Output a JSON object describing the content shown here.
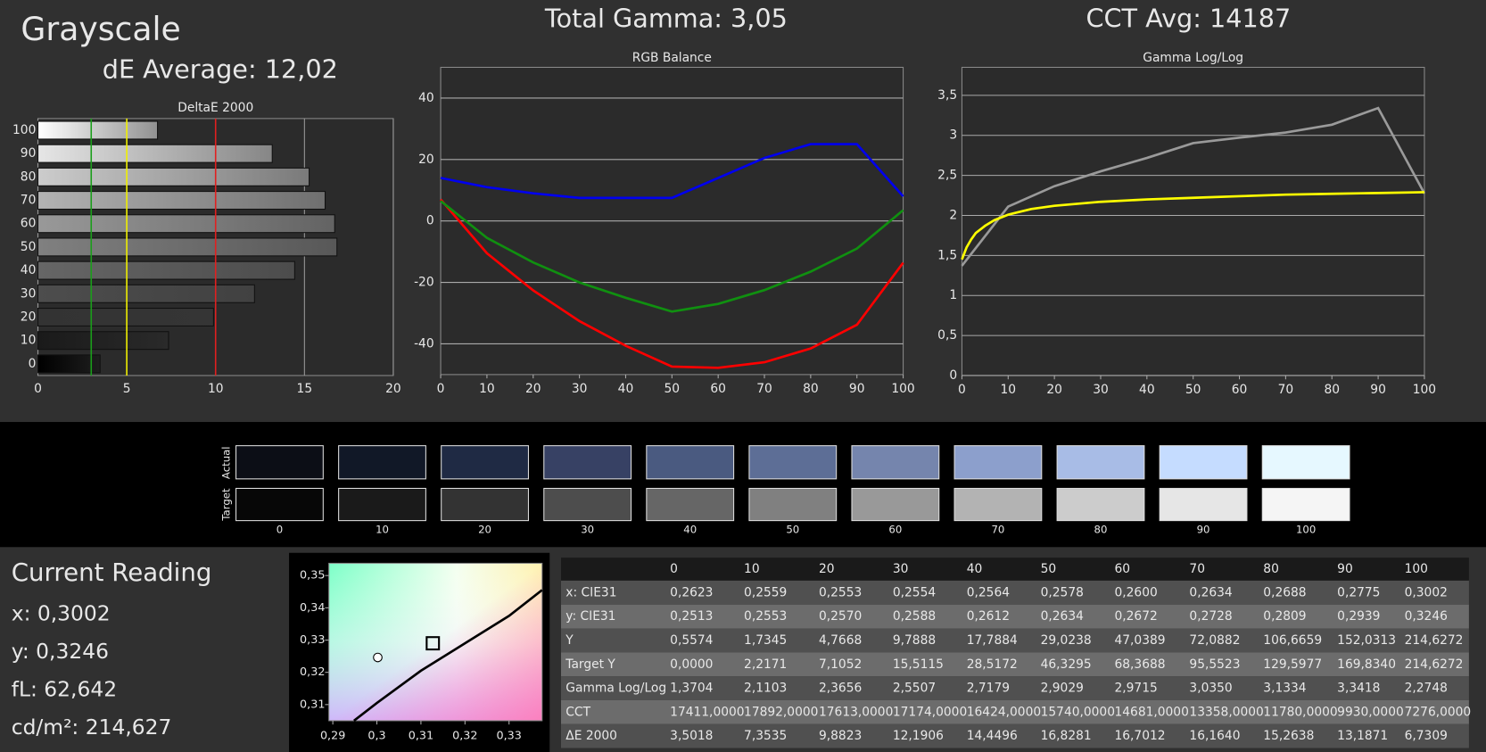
{
  "header": {
    "title": "Grayscale",
    "de_average": "dE Average: 12,02",
    "total_gamma": "Total Gamma: 3,05",
    "cct_avg": "CCT Avg: 14187"
  },
  "deltae_chart": {
    "type": "hbar",
    "title": "DeltaE 2000",
    "categories": [
      "100",
      "90",
      "80",
      "70",
      "60",
      "50",
      "40",
      "30",
      "20",
      "10",
      "0"
    ],
    "values": [
      6.7309,
      13.1871,
      15.2638,
      16.164,
      16.7012,
      16.8281,
      14.4496,
      12.1906,
      9.8823,
      7.3535,
      3.5018
    ],
    "xlim": [
      0,
      20
    ],
    "xticks": [
      0,
      5,
      10,
      15,
      20
    ],
    "reference_lines": [
      {
        "value": 3,
        "color": "#1a9e1a"
      },
      {
        "value": 5,
        "color": "#f0f000"
      },
      {
        "value": 10,
        "color": "#e02020"
      }
    ]
  },
  "rgb_chart": {
    "type": "line",
    "title": "RGB Balance",
    "x": [
      0,
      10,
      20,
      30,
      40,
      50,
      60,
      70,
      80,
      90,
      100
    ],
    "xlim": [
      0,
      100
    ],
    "xticks": [
      0,
      10,
      20,
      30,
      40,
      50,
      60,
      70,
      80,
      90,
      100
    ],
    "ylim": [
      -50,
      50
    ],
    "yticks": [
      -40,
      -20,
      0,
      20,
      40
    ],
    "grid": true,
    "series": [
      {
        "name": "Red",
        "color": "#ff0000",
        "values": [
          7,
          -10.5,
          -22.6,
          -32.6,
          -40.6,
          -47.4,
          -47.8,
          -46,
          -41.5,
          -33.8,
          -13.6
        ]
      },
      {
        "name": "Green",
        "color": "#109010",
        "values": [
          6.5,
          -5.5,
          -13.5,
          -20,
          -25,
          -29.5,
          -27,
          -22.5,
          -16.5,
          -9,
          3.5
        ]
      },
      {
        "name": "Blue",
        "color": "#0000ee",
        "values": [
          14,
          11,
          9,
          7.5,
          7.5,
          7.5,
          14,
          20.5,
          25,
          25,
          8
        ]
      }
    ]
  },
  "gamma_chart": {
    "type": "line",
    "title": "Gamma Log/Log",
    "xlim": [
      0,
      100
    ],
    "xticks": [
      0,
      10,
      20,
      30,
      40,
      50,
      60,
      70,
      80,
      90,
      100
    ],
    "ylim": [
      0,
      3.85
    ],
    "yticks": [
      0,
      {
        "value": 0.5,
        "label": "0,5"
      },
      1,
      {
        "value": 1.5,
        "label": "1,5"
      },
      2,
      {
        "value": 2.5,
        "label": "2,5"
      },
      3,
      {
        "value": 3.5,
        "label": "3,5"
      }
    ],
    "grid": true,
    "series": [
      {
        "name": "Measured",
        "color": "#9a9a9a",
        "x": [
          0,
          10,
          20,
          30,
          40,
          50,
          60,
          70,
          80,
          90,
          100
        ],
        "values": [
          1.3704,
          2.1103,
          2.3656,
          2.5507,
          2.7179,
          2.9029,
          2.9715,
          3.035,
          3.1334,
          3.3418,
          2.2748
        ]
      },
      {
        "name": "Target",
        "color": "#ffff00",
        "x": [
          0,
          1,
          2,
          3,
          5,
          7,
          10,
          15,
          20,
          30,
          40,
          50,
          60,
          70,
          80,
          90,
          100
        ],
        "values": [
          1.45,
          1.6,
          1.7,
          1.78,
          1.87,
          1.94,
          2.01,
          2.08,
          2.12,
          2.17,
          2.2,
          2.22,
          2.24,
          2.26,
          2.27,
          2.28,
          2.29
        ]
      }
    ]
  },
  "swatches": {
    "row_labels": [
      "Actual",
      "Target"
    ],
    "labels": [
      0,
      10,
      20,
      30,
      40,
      50,
      60,
      70,
      80,
      90,
      100
    ],
    "actual_colors": [
      "#0c0e16",
      "#111827",
      "#1f2a44",
      "#374164",
      "#4a5a80",
      "#5d6e96",
      "#7585ad",
      "#8c9fcc",
      "#a8bce6",
      "#c5dcff",
      "#e6f8ff"
    ],
    "target_colors": [
      "#070707",
      "#1a1a1a",
      "#333333",
      "#4d4d4d",
      "#666666",
      "#808080",
      "#999999",
      "#b3b3b3",
      "#cccccc",
      "#e6e6e6",
      "#f5f5f5"
    ]
  },
  "current_reading": {
    "title": "Current Reading",
    "lines": [
      "x: 0,3002",
      "y: 0,3246",
      "fL: 62,642",
      "cd/m²: 214,627"
    ]
  },
  "cie_chart": {
    "type": "scatter",
    "xlim": [
      0.2891,
      0.3375
    ],
    "ylim": [
      0.305,
      0.3538
    ],
    "xticks": [
      {
        "value": 0.29,
        "label": "0,29"
      },
      {
        "value": 0.3,
        "label": "0,3"
      },
      {
        "value": 0.31,
        "label": "0,31"
      },
      {
        "value": 0.32,
        "label": "0,32"
      },
      {
        "value": 0.33,
        "label": "0,33"
      }
    ],
    "yticks": [
      {
        "value": 0.31,
        "label": "0,31"
      },
      {
        "value": 0.32,
        "label": "0,32"
      },
      {
        "value": 0.33,
        "label": "0,33"
      },
      {
        "value": 0.34,
        "label": "0,34"
      },
      {
        "value": 0.35,
        "label": "0,35"
      }
    ],
    "locus": {
      "x": [
        0.2948,
        0.3,
        0.31,
        0.32,
        0.33,
        0.3375
      ],
      "y": [
        0.305,
        0.3105,
        0.3205,
        0.329,
        0.3375,
        0.3455
      ]
    },
    "measured": {
      "x": 0.3002,
      "y": 0.3246
    },
    "target": {
      "x": 0.3127,
      "y": 0.329
    }
  },
  "table": {
    "columns": [
      0,
      10,
      20,
      30,
      40,
      50,
      60,
      70,
      80,
      90,
      100
    ],
    "rows": [
      {
        "label": "x: CIE31",
        "values": [
          "0,2623",
          "0,2559",
          "0,2553",
          "0,2554",
          "0,2564",
          "0,2578",
          "0,2600",
          "0,2634",
          "0,2688",
          "0,2775",
          "0,3002"
        ]
      },
      {
        "label": "y: CIE31",
        "values": [
          "0,2513",
          "0,2553",
          "0,2570",
          "0,2588",
          "0,2612",
          "0,2634",
          "0,2672",
          "0,2728",
          "0,2809",
          "0,2939",
          "0,3246"
        ]
      },
      {
        "label": "Y",
        "values": [
          "0,5574",
          "1,7345",
          "4,7668",
          "9,7888",
          "17,7884",
          "29,0238",
          "47,0389",
          "72,0882",
          "106,6659",
          "152,0313",
          "214,6272"
        ]
      },
      {
        "label": "Target Y",
        "values": [
          "0,0000",
          "2,2171",
          "7,1052",
          "15,5115",
          "28,5172",
          "46,3295",
          "68,3688",
          "95,5523",
          "129,5977",
          "169,8340",
          "214,6272"
        ]
      },
      {
        "label": "Gamma Log/Log",
        "values": [
          "1,3704",
          "2,1103",
          "2,3656",
          "2,5507",
          "2,7179",
          "2,9029",
          "2,9715",
          "3,0350",
          "3,1334",
          "3,3418",
          "2,2748"
        ]
      },
      {
        "label": "CCT",
        "values": [
          "17411,0000",
          "17892,0000",
          "17613,0000",
          "17174,0000",
          "16424,0000",
          "15740,0000",
          "14681,0000",
          "13358,0000",
          "11780,0000",
          "9930,0000",
          "7276,0000"
        ]
      },
      {
        "label": "ΔE 2000",
        "values": [
          "3,5018",
          "7,3535",
          "9,8823",
          "12,1906",
          "14,4496",
          "16,8281",
          "16,7012",
          "16,1640",
          "15,2638",
          "13,1871",
          "6,7309"
        ]
      }
    ]
  }
}
